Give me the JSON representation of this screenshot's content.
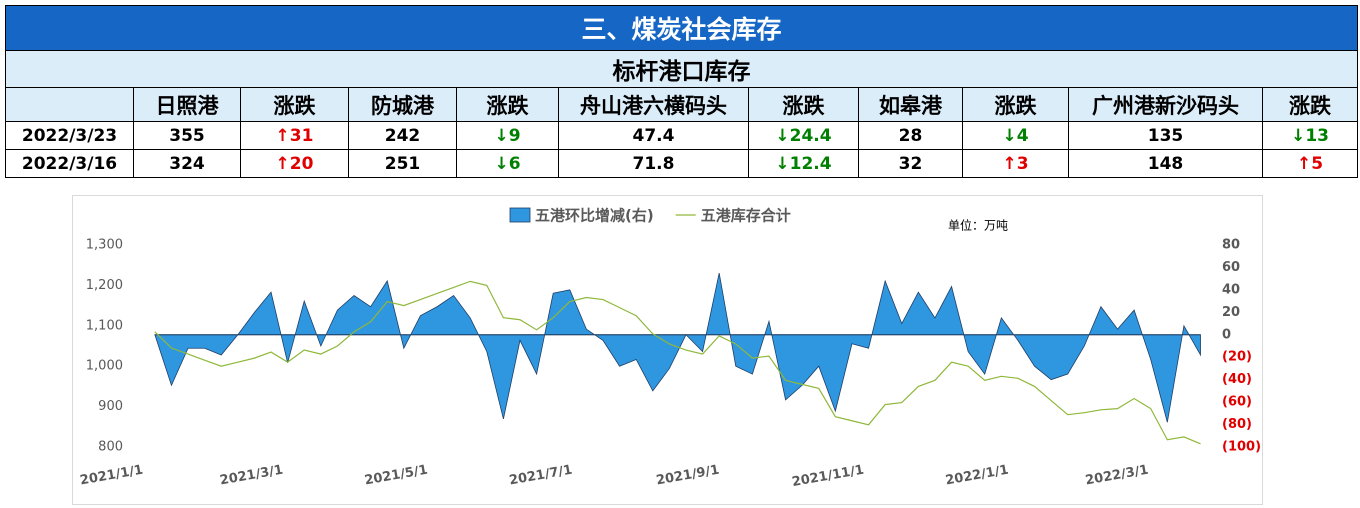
{
  "header": {
    "title": "三、煤炭社会库存"
  },
  "table": {
    "title": "标杆港口库存",
    "columns": [
      "日照港",
      "涨跌",
      "防城港",
      "涨跌",
      "舟山港六横码头",
      "涨跌",
      "如皋港",
      "涨跌",
      "广州港新沙码头",
      "涨跌"
    ],
    "rows": [
      [
        "2022/3/23",
        355,
        "↑31",
        242,
        "↓9",
        47.4,
        "↓24.4",
        28,
        "↓4",
        135,
        "↓13"
      ],
      [
        "2022/3/16",
        324,
        "↑20",
        251,
        "↓6",
        71.8,
        "↓12.4",
        32,
        "↑3",
        148,
        "↑5"
      ]
    ],
    "up_color": "#e00000",
    "down_color": "#008000"
  },
  "chart_data": {
    "type": "line",
    "annotation": "单位：万吨",
    "x": [
      "2021/1/6",
      "2021/1/13",
      "2021/1/20",
      "2021/1/27",
      "2021/2/3",
      "2021/2/10",
      "2021/2/17",
      "2021/2/24",
      "2021/3/3",
      "2021/3/10",
      "2021/3/17",
      "2021/3/24",
      "2021/3/31",
      "2021/4/7",
      "2021/4/14",
      "2021/4/21",
      "2021/4/28",
      "2021/5/5",
      "2021/5/12",
      "2021/5/19",
      "2021/5/26",
      "2021/6/2",
      "2021/6/9",
      "2021/6/16",
      "2021/6/23",
      "2021/6/30",
      "2021/7/7",
      "2021/7/14",
      "2021/7/21",
      "2021/7/28",
      "2021/8/4",
      "2021/8/11",
      "2021/8/18",
      "2021/8/25",
      "2021/9/1",
      "2021/9/8",
      "2021/9/15",
      "2021/9/22",
      "2021/9/29",
      "2021/10/6",
      "2021/10/13",
      "2021/10/20",
      "2021/10/27",
      "2021/11/3",
      "2021/11/10",
      "2021/11/17",
      "2021/11/24",
      "2021/12/1",
      "2021/12/8",
      "2021/12/15",
      "2021/12/22",
      "2021/12/29",
      "2022/1/5",
      "2022/1/12",
      "2022/1/19",
      "2022/1/26",
      "2022/2/2",
      "2022/2/9",
      "2022/2/16",
      "2022/2/23",
      "2022/3/2",
      "2022/3/9",
      "2022/3/16",
      "2022/3/23"
    ],
    "series": [
      {
        "name": "五港环比增减(右)",
        "type": "area",
        "axis": "y2",
        "color": "#2f96e0",
        "edge_color": "#1f3f66",
        "values": [
          0,
          -45,
          -12,
          -12,
          -18,
          0,
          20,
          38,
          -25,
          30,
          -10,
          22,
          35,
          25,
          48,
          -12,
          17,
          25,
          35,
          15,
          -15,
          -75,
          -5,
          -35,
          37,
          40,
          5,
          -5,
          -28,
          -22,
          -50,
          -30,
          0,
          -15,
          55,
          -28,
          -35,
          12,
          -58,
          -45,
          -28,
          -68,
          -8,
          -12,
          48,
          10,
          38,
          15,
          43,
          -15,
          -35,
          15,
          -5,
          -28,
          -40,
          -35,
          -10,
          25,
          5,
          22,
          -22,
          -78,
          8,
          -18
        ]
      },
      {
        "name": "五港库存合计",
        "type": "line",
        "color": "#8fb83a",
        "values": [
          1085,
          1045,
          1030,
          1015,
          1000,
          1010,
          1020,
          1035,
          1010,
          1040,
          1030,
          1050,
          1085,
          1110,
          1160,
          1150,
          1165,
          1180,
          1195,
          1210,
          1200,
          1120,
          1115,
          1090,
          1120,
          1160,
          1170,
          1165,
          1145,
          1125,
          1080,
          1055,
          1040,
          1030,
          1075,
          1055,
          1020,
          1025,
          965,
          955,
          945,
          875,
          865,
          855,
          905,
          910,
          950,
          965,
          1010,
          1000,
          965,
          975,
          970,
          950,
          915,
          880,
          885,
          892,
          895,
          920,
          895,
          818,
          825,
          808
        ]
      }
    ],
    "xlim": [
      "2021/1/1",
      "2022/3/27"
    ],
    "xticks": [
      "2021/1/1",
      "2021/3/1",
      "2021/5/1",
      "2021/7/1",
      "2021/9/1",
      "2021/11/1",
      "2022/1/1",
      "2022/3/1"
    ],
    "ylim": [
      800,
      1300
    ],
    "yticks": [
      800,
      900,
      {
        "value": 1000,
        "label": "1,000"
      },
      {
        "value": 1100,
        "label": "1,100"
      },
      {
        "value": 1200,
        "label": "1,200"
      },
      {
        "value": 1300,
        "label": "1,300"
      }
    ],
    "y2lim": [
      -100,
      80
    ],
    "y2ticks": [
      {
        "value": -100,
        "label": "(100)"
      },
      {
        "value": -80,
        "label": "(80)"
      },
      {
        "value": -60,
        "label": "(60)"
      },
      {
        "value": -40,
        "label": "(40)"
      },
      {
        "value": -20,
        "label": "(20)"
      },
      0,
      20,
      40,
      60,
      80
    ],
    "y2_negative_color": "#e00000",
    "legend": "top"
  }
}
